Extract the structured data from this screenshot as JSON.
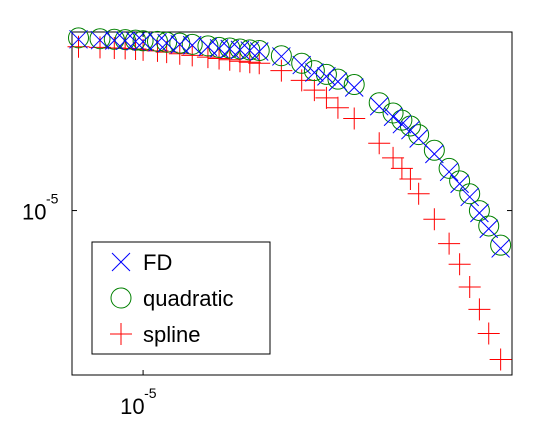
{
  "chart_data": {
    "type": "scatter",
    "title": "",
    "xlabel": "",
    "ylabel": "",
    "xscale": "log",
    "yscale": "log",
    "xlim": [
      7.5e-06,
      4.45e-05
    ],
    "ylim": [
      2.55e-06,
      4.41e-05
    ],
    "grid": false,
    "legend_position": "bottom-left",
    "x_ticks": [
      {
        "value": 1e-05,
        "label": "10",
        "exponent": "-5"
      }
    ],
    "y_ticks": [
      {
        "value": 1e-05,
        "label": "10",
        "exponent": "-5"
      }
    ],
    "series": [
      {
        "name": "FD",
        "marker": "x",
        "color": "#0000ff",
        "x": [
          7.7e-06,
          8.4e-06,
          8.9e-06,
          9.3e-06,
          9.7e-06,
          1e-05,
          1.06e-05,
          1.1e-05,
          1.16e-05,
          1.22e-05,
          1.3e-05,
          1.36e-05,
          1.42e-05,
          1.48e-05,
          1.54e-05,
          1.6e-05,
          1.75e-05,
          1.9e-05,
          2e-05,
          2.1e-05,
          2.2e-05,
          2.35e-05,
          2.6e-05,
          2.75e-05,
          2.85e-05,
          2.95e-05,
          3.05e-05,
          3.25e-05,
          3.45e-05,
          3.6e-05,
          3.75e-05,
          3.9e-05,
          4.05e-05,
          4.25e-05
        ],
        "y": [
          4.15e-05,
          4.12e-05,
          4.11e-05,
          4.1e-05,
          4.08e-05,
          4.07e-05,
          4.05e-05,
          4.02e-05,
          3.98e-05,
          3.95e-05,
          3.9e-05,
          3.85e-05,
          3.83e-05,
          3.8e-05,
          3.78e-05,
          3.75e-05,
          3.6e-05,
          3.35e-05,
          3.15e-05,
          3.05e-05,
          2.92e-05,
          2.78e-05,
          2.38e-05,
          2.18e-05,
          2.05e-05,
          1.95e-05,
          1.82e-05,
          1.6e-05,
          1.38e-05,
          1.25e-05,
          1.12e-05,
          9.8e-06,
          8.6e-06,
          7.3e-06
        ]
      },
      {
        "name": "quadratic",
        "marker": "o",
        "color": "#008000",
        "x": [
          7.7e-06,
          8.4e-06,
          8.9e-06,
          9.3e-06,
          9.7e-06,
          1e-05,
          1.06e-05,
          1.1e-05,
          1.16e-05,
          1.22e-05,
          1.3e-05,
          1.36e-05,
          1.42e-05,
          1.48e-05,
          1.54e-05,
          1.6e-05,
          1.75e-05,
          1.9e-05,
          2e-05,
          2.1e-05,
          2.2e-05,
          2.35e-05,
          2.6e-05,
          2.75e-05,
          2.85e-05,
          2.95e-05,
          3.05e-05,
          3.25e-05,
          3.45e-05,
          3.6e-05,
          3.75e-05,
          3.9e-05,
          4.05e-05,
          4.25e-05
        ],
        "y": [
          4.2e-05,
          4.17e-05,
          4.15e-05,
          4.14e-05,
          4.12e-05,
          4.1e-05,
          4.08e-05,
          4.05e-05,
          4.02e-05,
          3.98e-05,
          3.93e-05,
          3.88e-05,
          3.86e-05,
          3.83e-05,
          3.8e-05,
          3.78e-05,
          3.62e-05,
          3.4e-05,
          3.2e-05,
          3.1e-05,
          2.98e-05,
          2.85e-05,
          2.45e-05,
          2.25e-05,
          2.12e-05,
          2.02e-05,
          1.88e-05,
          1.65e-05,
          1.42e-05,
          1.28e-05,
          1.15e-05,
          1e-05,
          8.8e-06,
          7.5e-06
        ]
      },
      {
        "name": "spline",
        "marker": "+",
        "color": "#ff0000",
        "x": [
          7.7e-06,
          8.4e-06,
          8.9e-06,
          9.3e-06,
          9.7e-06,
          1e-05,
          1.06e-05,
          1.1e-05,
          1.16e-05,
          1.22e-05,
          1.3e-05,
          1.36e-05,
          1.42e-05,
          1.48e-05,
          1.54e-05,
          1.6e-05,
          1.75e-05,
          1.9e-05,
          2e-05,
          2.1e-05,
          2.2e-05,
          2.35e-05,
          2.6e-05,
          2.75e-05,
          2.85e-05,
          2.95e-05,
          3.05e-05,
          3.25e-05,
          3.45e-05,
          3.6e-05,
          3.75e-05,
          3.9e-05,
          4.05e-05,
          4.25e-05
        ],
        "y": [
          3.9e-05,
          3.88e-05,
          3.86e-05,
          3.85e-05,
          3.83e-05,
          3.8e-05,
          3.77e-05,
          3.73e-05,
          3.68e-05,
          3.63e-05,
          3.58e-05,
          3.54e-05,
          3.5e-05,
          3.46e-05,
          3.43e-05,
          3.4e-05,
          3.2e-05,
          2.95e-05,
          2.72e-05,
          2.55e-05,
          2.35e-05,
          2.15e-05,
          1.75e-05,
          1.55e-05,
          1.42e-05,
          1.3e-05,
          1.15e-05,
          9.3e-06,
          7.6e-06,
          6.4e-06,
          5.3e-06,
          4.4e-06,
          3.6e-06,
          2.9e-06
        ]
      }
    ]
  }
}
